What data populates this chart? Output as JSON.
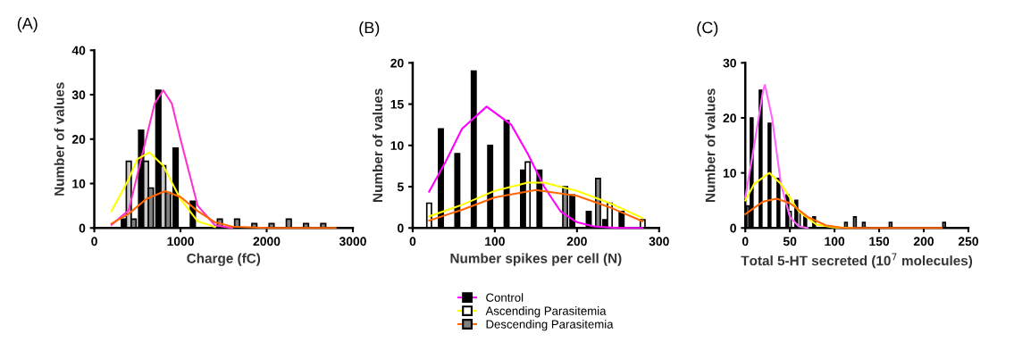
{
  "chart_data": [
    {
      "type": "bar",
      "title": "(A)",
      "xlabel": "Charge (fC)",
      "ylabel": "Number of values",
      "xlim": [
        0,
        3000
      ],
      "xticks": [
        0,
        1000,
        2000,
        3000
      ],
      "ylim": [
        0,
        40
      ],
      "yticks": [
        0,
        10,
        20,
        30,
        40
      ],
      "grid": false,
      "legend": false,
      "x": [
        400,
        600,
        800,
        1000,
        1200,
        1400,
        1600,
        1800,
        2000,
        2200,
        2400,
        2600
      ],
      "series": [
        {
          "color": "#000000",
          "values": [
            2,
            22,
            31,
            18,
            6,
            null,
            null,
            null,
            null,
            null,
            null,
            null
          ]
        },
        {
          "color": "#c8c8c8",
          "values": [
            15,
            15,
            14,
            null,
            null,
            null,
            null,
            null,
            null,
            null,
            null,
            null
          ]
        },
        {
          "color": "#808080",
          "values": [
            2,
            9,
            8,
            null,
            null,
            2,
            2,
            1,
            1,
            2,
            1,
            1
          ]
        },
        {
          "type": "line",
          "color": "#ff33cc",
          "x": [
            200,
            400,
            600,
            700,
            800,
            900,
            1000,
            1200,
            1400,
            1600
          ],
          "values": [
            0.7,
            4,
            20,
            28,
            31,
            28,
            20,
            5,
            0.6,
            0
          ]
        },
        {
          "type": "line",
          "color": "#ffff00",
          "x": [
            200,
            400,
            500,
            640,
            800,
            1000,
            1200,
            1400
          ],
          "values": [
            3.8,
            11,
            15.5,
            17,
            14,
            6.5,
            1.5,
            0.2
          ]
        },
        {
          "type": "line",
          "color": "#ff6600",
          "x": [
            200,
            400,
            600,
            820,
            1000,
            1200,
            1400,
            1600,
            2000,
            2800
          ],
          "values": [
            1,
            3.2,
            6.5,
            8.3,
            7,
            3.8,
            1.3,
            0.3,
            0,
            0
          ]
        }
      ]
    },
    {
      "type": "bar",
      "title": "(B)",
      "xlabel": "Number spikes per cell (N)",
      "ylabel": "Number of values",
      "xlim": [
        0,
        300
      ],
      "xticks": [
        0,
        100,
        200,
        300
      ],
      "ylim": [
        0,
        20
      ],
      "yticks": [
        0,
        5,
        10,
        15,
        20
      ],
      "grid": false,
      "legend": "bottom",
      "x": [
        20,
        40,
        60,
        80,
        100,
        120,
        140,
        160,
        180,
        200,
        220,
        240,
        260,
        280
      ],
      "series": [
        {
          "name": "Control",
          "color": "#000000",
          "values": [
            null,
            12,
            9,
            19,
            10,
            13,
            7,
            7,
            null,
            4,
            2,
            1,
            2,
            null
          ]
        },
        {
          "name": "Ascending Parasitemia",
          "color": "#ffffff",
          "values": [
            3,
            null,
            null,
            null,
            null,
            null,
            8,
            null,
            null,
            null,
            null,
            3,
            null,
            1
          ]
        },
        {
          "name": "Descending Parasitemia",
          "color": "#808080",
          "values": [
            null,
            null,
            null,
            null,
            null,
            null,
            null,
            null,
            5,
            null,
            6,
            null,
            null,
            null
          ]
        },
        {
          "type": "line",
          "color": "#ff00ff",
          "x": [
            20,
            40,
            60,
            90,
            120,
            140,
            160,
            180,
            200,
            220,
            250,
            280
          ],
          "values": [
            4.4,
            8,
            12,
            14.7,
            12.5,
            9,
            5,
            2,
            0.7,
            0.2,
            0,
            0
          ]
        },
        {
          "type": "line",
          "color": "#ffff00",
          "x": [
            20,
            60,
            100,
            140,
            160,
            200,
            240,
            280
          ],
          "values": [
            1.4,
            2.8,
            4.5,
            5.5,
            5.5,
            4.5,
            3,
            1.2
          ]
        },
        {
          "type": "line",
          "color": "#ff6600",
          "x": [
            20,
            60,
            100,
            150,
            200,
            240,
            280
          ],
          "values": [
            0.9,
            2.2,
            3.7,
            4.6,
            3.9,
            2.5,
            0.8
          ]
        }
      ]
    },
    {
      "type": "bar",
      "title": "(C)",
      "xlabel": "Total 5-HT secreted (10$^{7}$ molecules)",
      "ylabel": "Number of values",
      "xlim": [
        0,
        250
      ],
      "xticks": [
        0,
        50,
        100,
        150,
        200,
        250
      ],
      "ylim": [
        0,
        30
      ],
      "yticks": [
        0,
        10,
        20,
        30
      ],
      "grid": false,
      "legend": false,
      "x": [
        0,
        10,
        20,
        30,
        40,
        50,
        60,
        70,
        80,
        110,
        120,
        130,
        160,
        220
      ],
      "series": [
        {
          "color": "#000000",
          "values": [
            null,
            20,
            25,
            19,
            9,
            6,
            5,
            2,
            2,
            null,
            null,
            null,
            null,
            null
          ]
        },
        {
          "color": "#ffffff",
          "values": [
            null,
            null,
            null,
            null,
            null,
            3,
            3,
            null,
            null,
            null,
            null,
            null,
            null,
            null
          ]
        },
        {
          "color": "#808080",
          "values": [
            4,
            null,
            null,
            null,
            null,
            null,
            null,
            null,
            null,
            1,
            2,
            1,
            1,
            1
          ]
        },
        {
          "type": "line",
          "color": "#ff66ff",
          "x": [
            0,
            10,
            20,
            22,
            30,
            40,
            50,
            60,
            70
          ],
          "values": [
            5.5,
            15,
            25,
            26,
            20,
            8,
            2,
            0.3,
            0
          ]
        },
        {
          "type": "line",
          "color": "#ffff00",
          "x": [
            0,
            10,
            27,
            40,
            60,
            80,
            100,
            120
          ],
          "values": [
            5,
            8,
            10,
            8,
            3,
            0.6,
            0.1,
            0
          ]
        },
        {
          "type": "line",
          "color": "#ff6600",
          "x": [
            0,
            20,
            35,
            50,
            70,
            90,
            110,
            220
          ],
          "values": [
            2.5,
            4.8,
            5.3,
            4.5,
            2,
            0.5,
            0,
            0
          ]
        }
      ]
    }
  ]
}
